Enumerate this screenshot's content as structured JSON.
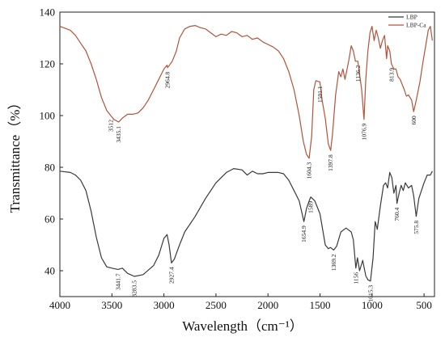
{
  "chart_data": {
    "type": "line",
    "xlabel": "Wavelength（cm⁻¹）",
    "ylabel": "Transmittance（%）",
    "xlim": [
      4000,
      400
    ],
    "ylim": [
      30,
      140
    ],
    "x_reversed": true,
    "grid": false,
    "legend_position": "top-right",
    "x_ticks": [
      4000,
      3500,
      3000,
      2500,
      2000,
      1500,
      1000,
      500
    ],
    "y_ticks": [
      40,
      60,
      80,
      100,
      120,
      140
    ],
    "series": [
      {
        "name": "LBP",
        "color": "#3a3a3a",
        "points": [
          [
            4000,
            78.5
          ],
          [
            3900,
            78
          ],
          [
            3850,
            77
          ],
          [
            3800,
            75
          ],
          [
            3750,
            71
          ],
          [
            3700,
            63
          ],
          [
            3650,
            53
          ],
          [
            3600,
            45
          ],
          [
            3550,
            41.5
          ],
          [
            3500,
            41
          ],
          [
            3441.7,
            40.5
          ],
          [
            3400,
            41
          ],
          [
            3350,
            39
          ],
          [
            3283.5,
            37.8
          ],
          [
            3200,
            38.5
          ],
          [
            3100,
            42
          ],
          [
            3050,
            46
          ],
          [
            3000,
            52.5
          ],
          [
            2970,
            54
          ],
          [
            2950,
            50
          ],
          [
            2927.4,
            43
          ],
          [
            2900,
            44.5
          ],
          [
            2850,
            50
          ],
          [
            2800,
            55
          ],
          [
            2700,
            61
          ],
          [
            2600,
            68
          ],
          [
            2500,
            74
          ],
          [
            2400,
            78
          ],
          [
            2330,
            79.5
          ],
          [
            2250,
            79
          ],
          [
            2200,
            77
          ],
          [
            2150,
            78.5
          ],
          [
            2100,
            77.5
          ],
          [
            2050,
            77.5
          ],
          [
            2000,
            78
          ],
          [
            1900,
            78
          ],
          [
            1850,
            77.5
          ],
          [
            1800,
            75
          ],
          [
            1750,
            71
          ],
          [
            1700,
            67
          ],
          [
            1654.9,
            59
          ],
          [
            1630,
            64
          ],
          [
            1600,
            67.5
          ],
          [
            1589,
            68.5
          ],
          [
            1550,
            67
          ],
          [
            1500,
            62
          ],
          [
            1450,
            50
          ],
          [
            1420,
            48.5
          ],
          [
            1400,
            49
          ],
          [
            1369.2,
            48
          ],
          [
            1340,
            49.5
          ],
          [
            1300,
            55
          ],
          [
            1250,
            56.5
          ],
          [
            1200,
            55
          ],
          [
            1180,
            52
          ],
          [
            1156,
            41
          ],
          [
            1140,
            45
          ],
          [
            1120,
            40
          ],
          [
            1090,
            44
          ],
          [
            1060,
            38
          ],
          [
            1040,
            36.5
          ],
          [
            1015.3,
            36
          ],
          [
            990,
            45
          ],
          [
            970,
            59
          ],
          [
            950,
            56
          ],
          [
            920,
            65
          ],
          [
            890,
            73
          ],
          [
            870,
            74
          ],
          [
            850,
            72
          ],
          [
            830,
            78
          ],
          [
            810,
            76
          ],
          [
            790,
            70
          ],
          [
            770,
            73
          ],
          [
            760.4,
            66
          ],
          [
            740,
            70
          ],
          [
            720,
            73
          ],
          [
            700,
            71
          ],
          [
            680,
            74
          ],
          [
            650,
            72
          ],
          [
            620,
            73
          ],
          [
            600,
            69
          ],
          [
            575.8,
            61
          ],
          [
            550,
            68
          ],
          [
            500,
            74
          ],
          [
            470,
            77
          ],
          [
            440,
            77
          ],
          [
            420,
            78.5
          ]
        ]
      },
      {
        "name": "LBP-Ca",
        "color": "#b5533a",
        "points": [
          [
            4000,
            134.5
          ],
          [
            3900,
            133
          ],
          [
            3850,
            131
          ],
          [
            3800,
            128
          ],
          [
            3750,
            125
          ],
          [
            3700,
            120
          ],
          [
            3650,
            114
          ],
          [
            3600,
            107
          ],
          [
            3550,
            102
          ],
          [
            3512,
            100
          ],
          [
            3480,
            98.5
          ],
          [
            3435.1,
            97.5
          ],
          [
            3400,
            99
          ],
          [
            3350,
            100.5
          ],
          [
            3300,
            100.5
          ],
          [
            3250,
            101
          ],
          [
            3200,
            103
          ],
          [
            3150,
            106
          ],
          [
            3100,
            110
          ],
          [
            3050,
            114
          ],
          [
            3000,
            118
          ],
          [
            2970,
            119.5
          ],
          [
            2964.8,
            118.5
          ],
          [
            2920,
            121
          ],
          [
            2880,
            125
          ],
          [
            2850,
            130
          ],
          [
            2800,
            133.5
          ],
          [
            2750,
            134.5
          ],
          [
            2700,
            134.8
          ],
          [
            2650,
            134
          ],
          [
            2600,
            133.5
          ],
          [
            2550,
            132
          ],
          [
            2500,
            130.5
          ],
          [
            2450,
            131.5
          ],
          [
            2400,
            131
          ],
          [
            2350,
            132.5
          ],
          [
            2300,
            132
          ],
          [
            2250,
            130.5
          ],
          [
            2200,
            131
          ],
          [
            2150,
            129.5
          ],
          [
            2100,
            130
          ],
          [
            2050,
            128.5
          ],
          [
            2000,
            127.5
          ],
          [
            1950,
            126.5
          ],
          [
            1900,
            125
          ],
          [
            1850,
            122
          ],
          [
            1800,
            117
          ],
          [
            1750,
            110
          ],
          [
            1700,
            100
          ],
          [
            1660,
            90
          ],
          [
            1630,
            85
          ],
          [
            1604.3,
            83.5
          ],
          [
            1580,
            92
          ],
          [
            1560,
            110
          ],
          [
            1540,
            113.5
          ],
          [
            1501.1,
            113
          ],
          [
            1480,
            106
          ],
          [
            1450,
            99
          ],
          [
            1420,
            89
          ],
          [
            1397.8,
            86.5
          ],
          [
            1380,
            93
          ],
          [
            1350,
            108
          ],
          [
            1320,
            117
          ],
          [
            1300,
            115
          ],
          [
            1280,
            118
          ],
          [
            1260,
            114
          ],
          [
            1240,
            118
          ],
          [
            1220,
            122
          ],
          [
            1200,
            127
          ],
          [
            1180,
            125
          ],
          [
            1160,
            121
          ],
          [
            1136.2,
            121
          ],
          [
            1120,
            116
          ],
          [
            1100,
            110
          ],
          [
            1076.9,
            98.5
          ],
          [
            1060,
            114
          ],
          [
            1040,
            125
          ],
          [
            1020,
            132
          ],
          [
            1000,
            134.5
          ],
          [
            980,
            129
          ],
          [
            960,
            133
          ],
          [
            940,
            130
          ],
          [
            920,
            126
          ],
          [
            900,
            129
          ],
          [
            880,
            131
          ],
          [
            860,
            122
          ],
          [
            850,
            127
          ],
          [
            830,
            125
          ],
          [
            813.9,
            120
          ],
          [
            790,
            118
          ],
          [
            770,
            118
          ],
          [
            750,
            115
          ],
          [
            730,
            114
          ],
          [
            710,
            112
          ],
          [
            690,
            110
          ],
          [
            670,
            107.5
          ],
          [
            650,
            108
          ],
          [
            620,
            106
          ],
          [
            600,
            101.5
          ],
          [
            575,
            106
          ],
          [
            540,
            113
          ],
          [
            510,
            121
          ],
          [
            480,
            128
          ],
          [
            460,
            133
          ],
          [
            440,
            134.5
          ],
          [
            420,
            129
          ]
        ]
      }
    ],
    "annotations": [
      {
        "text": "3441.7",
        "x": 3441.7,
        "y": 40.5,
        "series": "LBP"
      },
      {
        "text": "3283.5",
        "x": 3283.5,
        "y": 37.8,
        "series": "LBP"
      },
      {
        "text": "2927.4",
        "x": 2927.4,
        "y": 43,
        "series": "LBP"
      },
      {
        "text": "1654.9",
        "x": 1654.9,
        "y": 59,
        "series": "LBP"
      },
      {
        "text": "1589",
        "x": 1589,
        "y": 68.5,
        "series": "LBP"
      },
      {
        "text": "1369.2",
        "x": 1369.2,
        "y": 48,
        "series": "LBP"
      },
      {
        "text": "1156",
        "x": 1156,
        "y": 41,
        "series": "LBP"
      },
      {
        "text": "1015.3",
        "x": 1015.3,
        "y": 36,
        "series": "LBP"
      },
      {
        "text": "760.4",
        "x": 760.4,
        "y": 66,
        "series": "LBP"
      },
      {
        "text": "575.8",
        "x": 575.8,
        "y": 61,
        "series": "LBP"
      },
      {
        "text": "3512",
        "x": 3512,
        "y": 100,
        "series": "LBP-Ca"
      },
      {
        "text": "3435.1",
        "x": 3435.1,
        "y": 97.5,
        "series": "LBP-Ca"
      },
      {
        "text": "2964.8",
        "x": 2964.8,
        "y": 118.5,
        "series": "LBP-Ca"
      },
      {
        "text": "1604.3",
        "x": 1604.3,
        "y": 83.5,
        "series": "LBP-Ca"
      },
      {
        "text": "1501.1",
        "x": 1501.1,
        "y": 113,
        "series": "LBP-Ca"
      },
      {
        "text": "1397.8",
        "x": 1397.8,
        "y": 86.5,
        "series": "LBP-Ca"
      },
      {
        "text": "1136.2",
        "x": 1136.2,
        "y": 121,
        "series": "LBP-Ca"
      },
      {
        "text": "1076.9",
        "x": 1076.9,
        "y": 98.5,
        "series": "LBP-Ca"
      },
      {
        "text": "813.9",
        "x": 813.9,
        "y": 120,
        "series": "LBP-Ca"
      },
      {
        "text": "600",
        "x": 600,
        "y": 101.5,
        "series": "LBP-Ca"
      }
    ]
  }
}
